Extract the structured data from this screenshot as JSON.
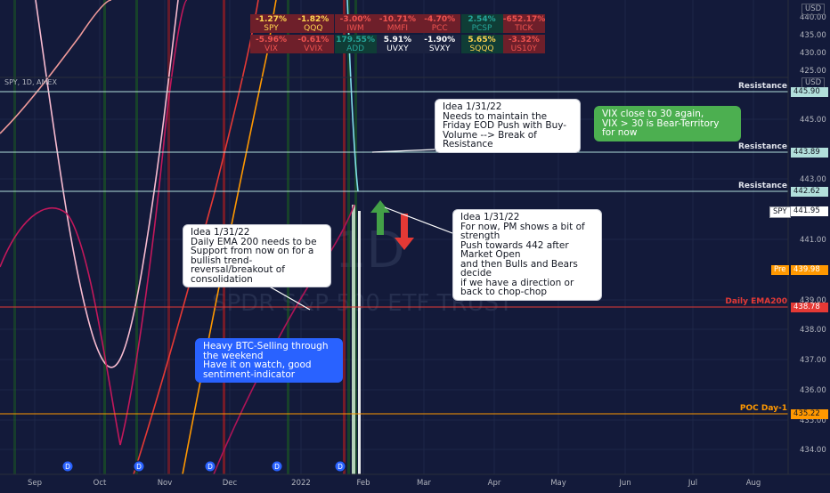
{
  "symbol_label": "SPY, 1D, AMEX",
  "watermark": {
    "ticker": "SPY, 1D",
    "name": "SPDR S&P 500 ETF TRUST"
  },
  "price_axis": {
    "currency_main": "USD",
    "currency_pane": "USD",
    "upper_ticks": [
      "440.00",
      "435.00",
      "430.00",
      "425.00"
    ],
    "lower_ticks": [
      "445.00",
      "443.00",
      "441.00",
      "439.00",
      "438.00",
      "437.00",
      "436.00",
      "435.00",
      "434.00"
    ]
  },
  "time_axis": [
    "Sep",
    "Oct",
    "Nov",
    "Dec",
    "2022",
    "Feb",
    "Mar",
    "Apr",
    "May",
    "Jun",
    "Jul",
    "Aug"
  ],
  "ticker_table": [
    [
      {
        "value": "-1.27%",
        "name": "SPY",
        "color": "#ffd54f",
        "bg": "#6e1f2a"
      },
      {
        "value": "-1.82%",
        "name": "QQQ",
        "color": "#ffd54f",
        "bg": "#6e1f2a"
      },
      {
        "value": "-3.00%",
        "name": "IWM",
        "color": "#ef5350",
        "bg": "#6e1f2a"
      },
      {
        "value": "-10.71%",
        "name": "MMFI",
        "color": "#ef5350",
        "bg": "#6e1f2a"
      },
      {
        "value": "-4.70%",
        "name": "PCC",
        "color": "#ef5350",
        "bg": "#6e1f2a"
      },
      {
        "value": "2.54%",
        "name": "PCSP",
        "color": "#26a69a",
        "bg": "#0f3d36"
      },
      {
        "value": "-652.17%",
        "name": "TICK",
        "color": "#ef5350",
        "bg": "#6e1f2a"
      }
    ],
    [
      {
        "value": "-5.96%",
        "name": "VIX",
        "color": "#ef5350",
        "bg": "#6e1f2a"
      },
      {
        "value": "-0.61%",
        "name": "VVIX",
        "color": "#ef5350",
        "bg": "#6e1f2a"
      },
      {
        "value": "179.55%",
        "name": "ADD",
        "color": "#26a69a",
        "bg": "#0f3d36"
      },
      {
        "value": "5.91%",
        "name": "UVXY",
        "color": "#ffffff",
        "bg": "#1b2240"
      },
      {
        "value": "-1.90%",
        "name": "SVXY",
        "color": "#ffffff",
        "bg": "#1b2240"
      },
      {
        "value": "5.65%",
        "name": "SQQQ",
        "color": "#ffd54f",
        "bg": "#0f3d36"
      },
      {
        "value": "-3.32%",
        "name": "US10Y",
        "color": "#ef5350",
        "bg": "#6e1f2a"
      }
    ]
  ],
  "levels": [
    {
      "label": "Resistance",
      "badge": "445.90",
      "color": "#b2dfdb",
      "badge_bg": "#b2dfdb",
      "badge_color": "#131722"
    },
    {
      "label": "Resistance",
      "badge": "443.89",
      "color": "#b2dfdb",
      "badge_bg": "#b2dfdb",
      "badge_color": "#131722"
    },
    {
      "label": "Resistance",
      "badge": "442.62",
      "color": "#b2dfdb",
      "badge_bg": "#b2dfdb",
      "badge_color": "#131722"
    },
    {
      "label": "Daily EMA200",
      "badge": "438.78",
      "color": "#e53935",
      "badge_bg": "#e53935",
      "badge_color": "#ffffff"
    },
    {
      "label": "POC Day-1",
      "badge": "435.22",
      "color": "#ff9800",
      "badge_bg": "#ff9800",
      "badge_color": "#131722"
    }
  ],
  "price_badges": {
    "spy_label": "SPY",
    "spy_value": "441.95",
    "pre_label": "Pre",
    "pre_value": "439.98"
  },
  "notes": {
    "note1": {
      "lines": [
        "Idea 1/31/22",
        "Needs to maintain the",
        "Friday EOD Push with Buy-",
        "Volume --> Break of",
        "Resistance"
      ]
    },
    "note2": {
      "lines": [
        "VIX close to 30 again,",
        "VIX > 30 is Bear-Territory",
        "for now"
      ]
    },
    "note3": {
      "lines": [
        "Idea 1/31/22",
        "For now, PM shows a bit of",
        "strength",
        "Push towards 442 after",
        "Market Open",
        "and then Bulls and Bears",
        "decide",
        "if we have a direction or",
        "back to chop-chop"
      ]
    },
    "note4": {
      "lines": [
        "Idea 1/31/22",
        "Daily EMA 200 needs to be",
        "Support from now on for a",
        "bullish trend-",
        "reversal/breakout of",
        "consolidation"
      ]
    },
    "note5": {
      "lines": [
        "Heavy BTC-Selling through",
        "the weekend",
        "Have it on watch, good",
        "sentiment-indicator"
      ]
    }
  },
  "colors": {
    "background": "#131a3a",
    "grid": "#1e2748",
    "axis_text": "#b2b5be",
    "up_arrow": "#43a047",
    "down_arrow": "#e53935"
  },
  "dividend_marker": "D",
  "chart_data": {
    "type": "line",
    "title": "SPY, 1D, AMEX",
    "x_range": [
      "Sep",
      "Aug"
    ],
    "y_upper_range": [
      425,
      440
    ],
    "y_lower_range": [
      434,
      446
    ],
    "series": [],
    "horizontal_levels": [
      445.9,
      443.89,
      442.62,
      438.78,
      435.22
    ],
    "last_price": 441.95,
    "premarket_price": 439.98
  }
}
